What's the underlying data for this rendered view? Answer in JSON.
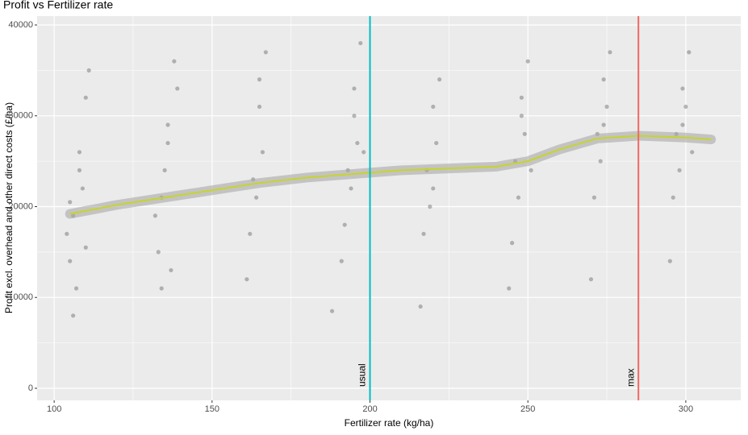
{
  "chart_data": {
    "type": "scatter",
    "title": "Profit vs Fertilizer rate",
    "x_label": "Fertilizer rate (kg/ha)",
    "y_label": "Profit excl. overhead and other direct costs (£/ha)",
    "xlim": [
      94.6,
      317.4
    ],
    "ylim": [
      -1330,
      40975
    ],
    "xticks": [
      100,
      150,
      200,
      250,
      300
    ],
    "yticks": [
      0,
      10000,
      20000,
      30000,
      40000
    ],
    "grid": true,
    "minor_grid": true,
    "panel_color": "#ebebeb",
    "point_color": "#555555",
    "x": [
      106,
      108,
      105,
      110,
      107,
      109,
      104,
      111,
      106,
      108,
      105,
      110,
      134,
      136,
      133,
      138,
      135,
      137,
      132,
      136,
      134,
      139,
      163,
      165,
      162,
      167,
      164,
      166,
      161,
      165,
      193,
      195,
      192,
      197,
      194,
      196,
      191,
      195,
      188,
      198,
      218,
      220,
      217,
      222,
      219,
      221,
      216,
      220,
      246,
      248,
      245,
      250,
      247,
      249,
      244,
      248,
      251,
      272,
      274,
      271,
      276,
      273,
      275,
      270,
      274,
      297,
      299,
      296,
      301,
      298,
      300,
      295,
      299,
      302
    ],
    "y": [
      19000,
      26000,
      14000,
      32000,
      11000,
      22000,
      17000,
      35000,
      8000,
      24000,
      20500,
      15500,
      21000,
      29000,
      15000,
      36000,
      24000,
      13000,
      19000,
      27000,
      11000,
      33000,
      23000,
      31000,
      17000,
      37000,
      21000,
      26000,
      12000,
      34000,
      24000,
      30000,
      18000,
      38000,
      22000,
      27000,
      14000,
      33000,
      8500,
      26000,
      24000,
      31000,
      17000,
      34000,
      20000,
      27000,
      9000,
      22000,
      25000,
      32000,
      16000,
      36000,
      21000,
      28000,
      11000,
      30000,
      24000,
      28000,
      34000,
      21000,
      37000,
      25000,
      31000,
      12000,
      29000,
      28000,
      33000,
      21000,
      37000,
      24000,
      31000,
      14000,
      29000,
      26000
    ],
    "smooth": {
      "color": "#c8d42a",
      "x": [
        105,
        120,
        135,
        150,
        165,
        180,
        195,
        210,
        225,
        240,
        250,
        260,
        272,
        285,
        300,
        308
      ],
      "y": [
        19200,
        20200,
        21000,
        21800,
        22600,
        23200,
        23600,
        24000,
        24200,
        24400,
        25000,
        26300,
        27500,
        27800,
        27600,
        27400
      ]
    },
    "vlines": [
      {
        "name": "usual",
        "x": 200,
        "color": "#00bcc4"
      },
      {
        "name": "max",
        "x": 285,
        "color": "#f1695e"
      }
    ]
  }
}
